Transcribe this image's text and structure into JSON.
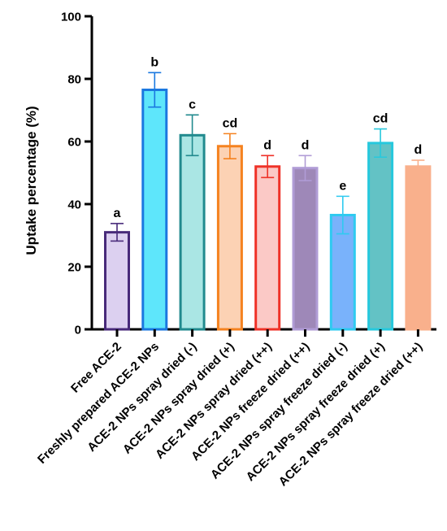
{
  "chart_data": {
    "type": "bar",
    "title": "",
    "xlabel": "",
    "ylabel": "Uptake percentage (%)",
    "ylim": [
      0,
      100
    ],
    "yticks": [
      0,
      20,
      40,
      60,
      80,
      100
    ],
    "grid": false,
    "categories": [
      "Free ACE-2",
      "Freshly prepared ACE-2 NPs",
      "ACE-2 NPs spray dried (-)",
      "ACE-2 NPs spray dried (+)",
      "ACE-2 NPs spray dried (++)",
      "ACE-2 NPs freeze dried (++)",
      "ACE-2 NPs spray freeze dried (-)",
      "ACE-2 NPs spray freeze dried (+)",
      "ACE-2 NPs spray freeze dried (++)"
    ],
    "values": [
      31,
      76.5,
      62,
      58.5,
      52,
      51.5,
      36.5,
      59.5,
      52
    ],
    "errors": [
      2.8,
      5.5,
      6.5,
      4,
      3.5,
      4,
      6,
      4.5,
      2
    ],
    "significance": [
      "a",
      "b",
      "c",
      "cd",
      "d",
      "d",
      "e",
      "cd",
      "d"
    ],
    "fill_colors": [
      "#dcd0f0",
      "#5ee6fb",
      "#aae6e4",
      "#fcd2b4",
      "#fbc9c6",
      "#9e88b8",
      "#79b2fb",
      "#63c2c5",
      "#f9b08c"
    ],
    "edge_colors": [
      "#482a7a",
      "#1b78e0",
      "#218a8e",
      "#f5821f",
      "#ef3228",
      "#b09cd6",
      "#2fcaf0",
      "#27c8dd",
      "#f9b08c"
    ]
  }
}
